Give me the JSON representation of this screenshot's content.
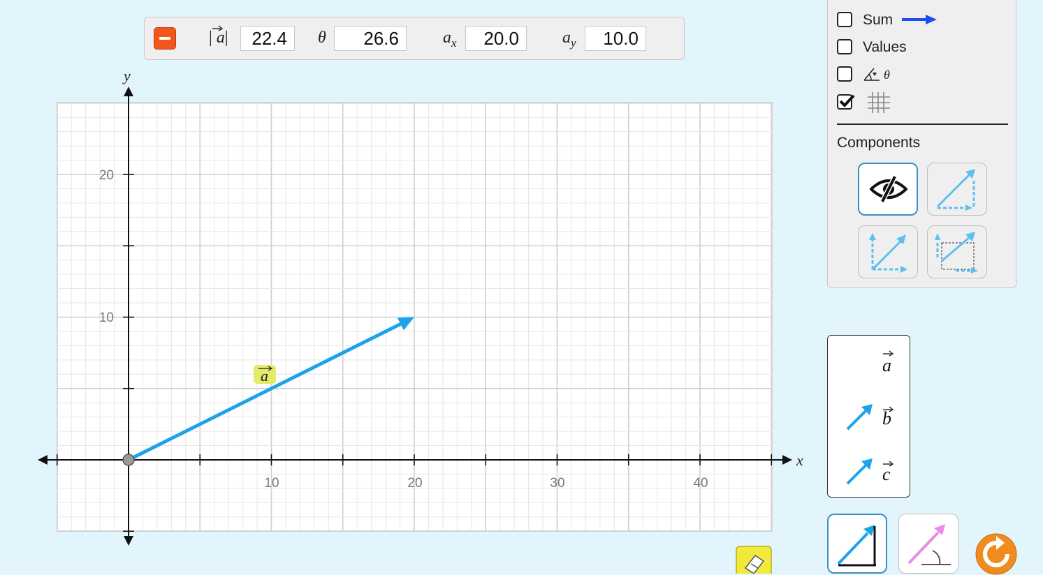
{
  "readout": {
    "magnitude_label": "|a|",
    "magnitude_value": "22.4",
    "theta_label": "θ",
    "theta_value": "26.6",
    "ax_label": "a",
    "ax_sub": "x",
    "ax_value": "20.0",
    "ay_label": "a",
    "ay_sub": "y",
    "ay_value": "10.0"
  },
  "graph": {
    "x_axis_label": "x",
    "y_axis_label": "y",
    "x_ticks": [
      "10",
      "20",
      "30",
      "40"
    ],
    "y_ticks": [
      "10",
      "20"
    ],
    "vector_label": "a",
    "vector": {
      "x": 20,
      "y": 10
    },
    "grid_on": true
  },
  "controls": {
    "sum_label": "Sum",
    "sum_checked": false,
    "values_label": "Values",
    "values_checked": false,
    "angle_label": "θ",
    "angle_checked": false,
    "grid_checked": true,
    "components_title": "Components"
  },
  "toolbox": {
    "a_label": "a",
    "b_label": "b",
    "c_label": "c"
  },
  "colors": {
    "vector": "#1ba3ea",
    "sum": "#1a4ff0",
    "remove": "#f2561d",
    "reset": "#f08c1e",
    "background": "#e3f5fc"
  }
}
